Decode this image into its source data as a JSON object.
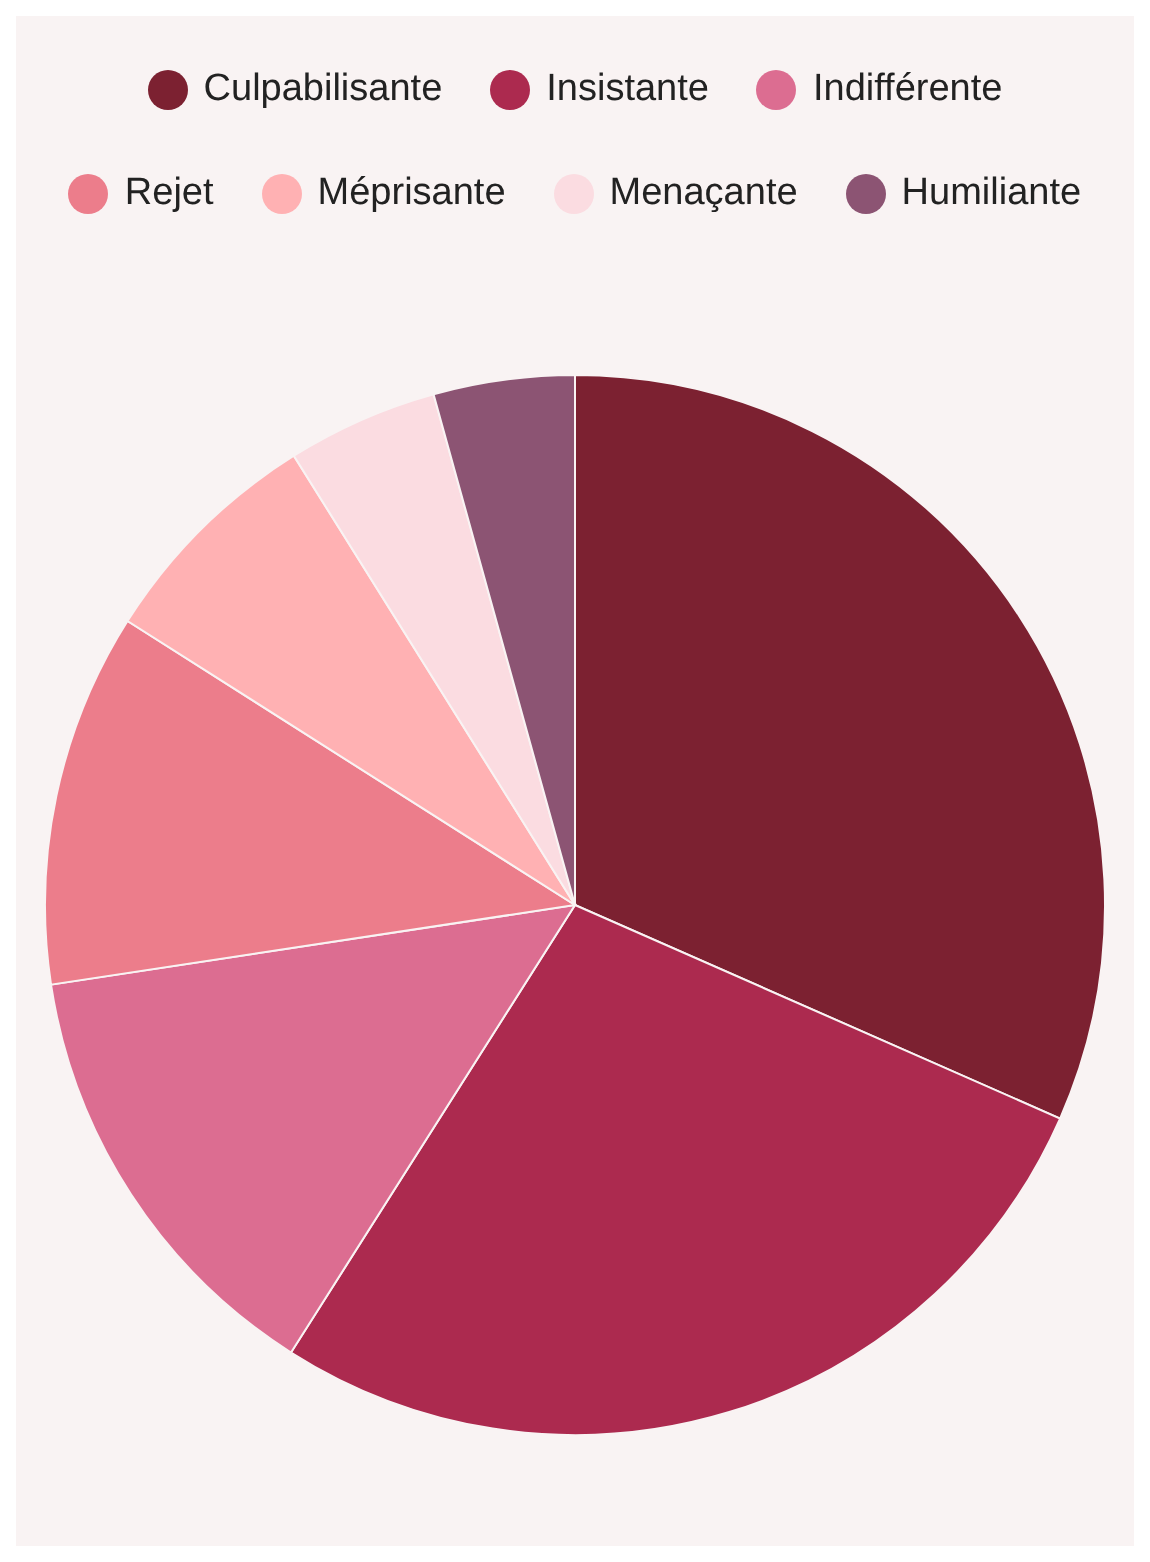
{
  "chart_data": {
    "type": "pie",
    "legend": "top",
    "categories": [
      "Culpabilisante",
      "Insistante",
      "Indifférente",
      "Rejet",
      "Méprisante",
      "Menaçante",
      "Humiliante"
    ],
    "values": [
      31.6,
      27.4,
      13.6,
      11.4,
      7.1,
      4.6,
      4.3
    ],
    "colors": [
      "#7c2131",
      "#ac2a4f",
      "#dc6d91",
      "#ec7d8b",
      "#ffb1b3",
      "#fbdce1",
      "#8c5473"
    ]
  }
}
